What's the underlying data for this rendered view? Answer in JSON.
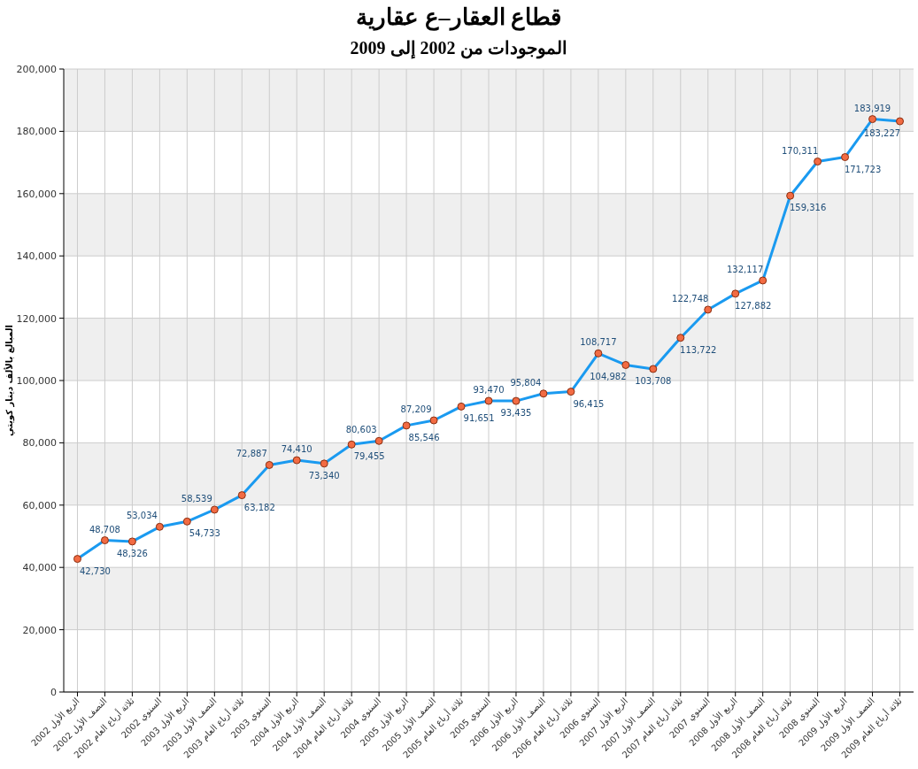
{
  "chart_data": {
    "type": "line",
    "title": "قطاع العقار–ع عقارية",
    "subtitle": "الموجودات من 2002 إلى 2009",
    "ylabel": "المبالغ بالألف دينار كويتي",
    "categories": [
      "الربع الأول 2002",
      "النصف الأول 2002",
      "ثلاثة أرباع العام 2002",
      "السنوي 2002",
      "الربع الأول 2003",
      "النصف الأول 2003",
      "ثلاثة أرباع العام 2003",
      "السنوي 2003",
      "الربع الأول 2004",
      "النصف الأول 2004",
      "ثلاثة أرباع العام 2004",
      "السنوي 2004",
      "الربع الأول 2005",
      "النصف الأول 2005",
      "ثلاثة أرباع العام 2005",
      "السنوي 2005",
      "الربع الأول 2006",
      "النصف الأول 2006",
      "ثلاثة أرباع العام 2006",
      "السنوي 2006",
      "الربع الأول 2007",
      "النصف الأول 2007",
      "ثلاثة أرباع العام 2007",
      "السنوي 2007",
      "الربع الأول 2008",
      "النصف الأول 2008",
      "ثلاثة أرباع العام 2008",
      "السنوي 2008",
      "الربع الأول 2009",
      "النصف الأول 2009",
      "ثلاثة أرباع العام 2009"
    ],
    "series": [
      {
        "color": "#1a9af0",
        "values": [
          42730,
          48708,
          48326,
          53034,
          54733,
          58539,
          63182,
          72887,
          74410,
          73340,
          79455,
          80603,
          85546,
          87209,
          91651,
          93470,
          93435,
          95804,
          96415,
          108717,
          104982,
          103708,
          113722,
          122748,
          127882,
          132117,
          159316,
          170311,
          171723,
          183919,
          183227
        ],
        "value_labels": [
          "42,730",
          "48,708",
          "48,326",
          "53,034",
          "54,733",
          "58,539",
          "63,182",
          "72,887",
          "74,410",
          "73,340",
          "79,455",
          "80,603",
          "85,546",
          "87,209",
          "91,651",
          "93,470",
          "93,435",
          "95,804",
          "96,415",
          "108,717",
          "104,982",
          "103,708",
          "113,722",
          "122,748",
          "127,882",
          "132,117",
          "159,316",
          "170,311",
          "171,723",
          "183,919",
          "183,227"
        ]
      }
    ],
    "ylim": [
      0,
      200000
    ],
    "yticks": [
      {
        "value": 0,
        "label": "0"
      },
      {
        "value": 20000,
        "label": "20,000"
      },
      {
        "value": 40000,
        "label": "40,000"
      },
      {
        "value": 60000,
        "label": "60,000"
      },
      {
        "value": 80000,
        "label": "80,000"
      },
      {
        "value": 100000,
        "label": "100,000"
      },
      {
        "value": 120000,
        "label": "120,000"
      },
      {
        "value": 140000,
        "label": "140,000"
      },
      {
        "value": 160000,
        "label": "160,000"
      },
      {
        "value": 180000,
        "label": "180,000"
      },
      {
        "value": 200000,
        "label": "200,000"
      }
    ],
    "grid": true,
    "marker": "circle"
  }
}
